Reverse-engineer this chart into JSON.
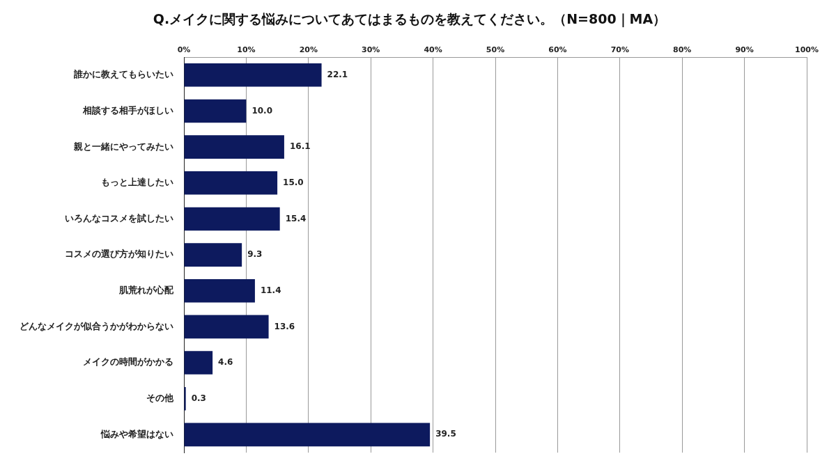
{
  "chart_data": {
    "type": "bar",
    "orientation": "horizontal",
    "title": "Q.メイクに関する悩みについてあてはまるものを教えてください。（N=800｜MA）",
    "categories": [
      "誰かに教えてもらいたい",
      "相談する相手がほしい",
      "親と一緒にやってみたい",
      "もっと上達したい",
      "いろんなコスメを試したい",
      "コスメの選び方が知りたい",
      "肌荒れが心配",
      "どんなメイクが似合うかがわからない",
      "メイクの時間がかかる",
      "その他",
      "悩みや希望はない"
    ],
    "values": [
      22.1,
      10.0,
      16.1,
      15.0,
      15.4,
      9.3,
      11.4,
      13.6,
      4.6,
      0.3,
      39.5
    ],
    "value_labels": [
      "22.1",
      "10.0",
      "16.1",
      "15.0",
      "15.4",
      "9.3",
      "11.4",
      "13.6",
      "4.6",
      "0.3",
      "39.5"
    ],
    "color": "#0d1a5e",
    "xlim": [
      0,
      100
    ],
    "xticks": [
      {
        "value": 0,
        "label": "0%"
      },
      {
        "value": 10,
        "label": "10%"
      },
      {
        "value": 20,
        "label": "20%"
      },
      {
        "value": 30,
        "label": "30%"
      },
      {
        "value": 40,
        "label": "40%"
      },
      {
        "value": 50,
        "label": "50%"
      },
      {
        "value": 60,
        "label": "60%"
      },
      {
        "value": 70,
        "label": "70%"
      },
      {
        "value": 80,
        "label": "80%"
      },
      {
        "value": 90,
        "label": "90%"
      },
      {
        "value": 100,
        "label": "100%"
      }
    ],
    "grid": "x",
    "legend": false
  }
}
